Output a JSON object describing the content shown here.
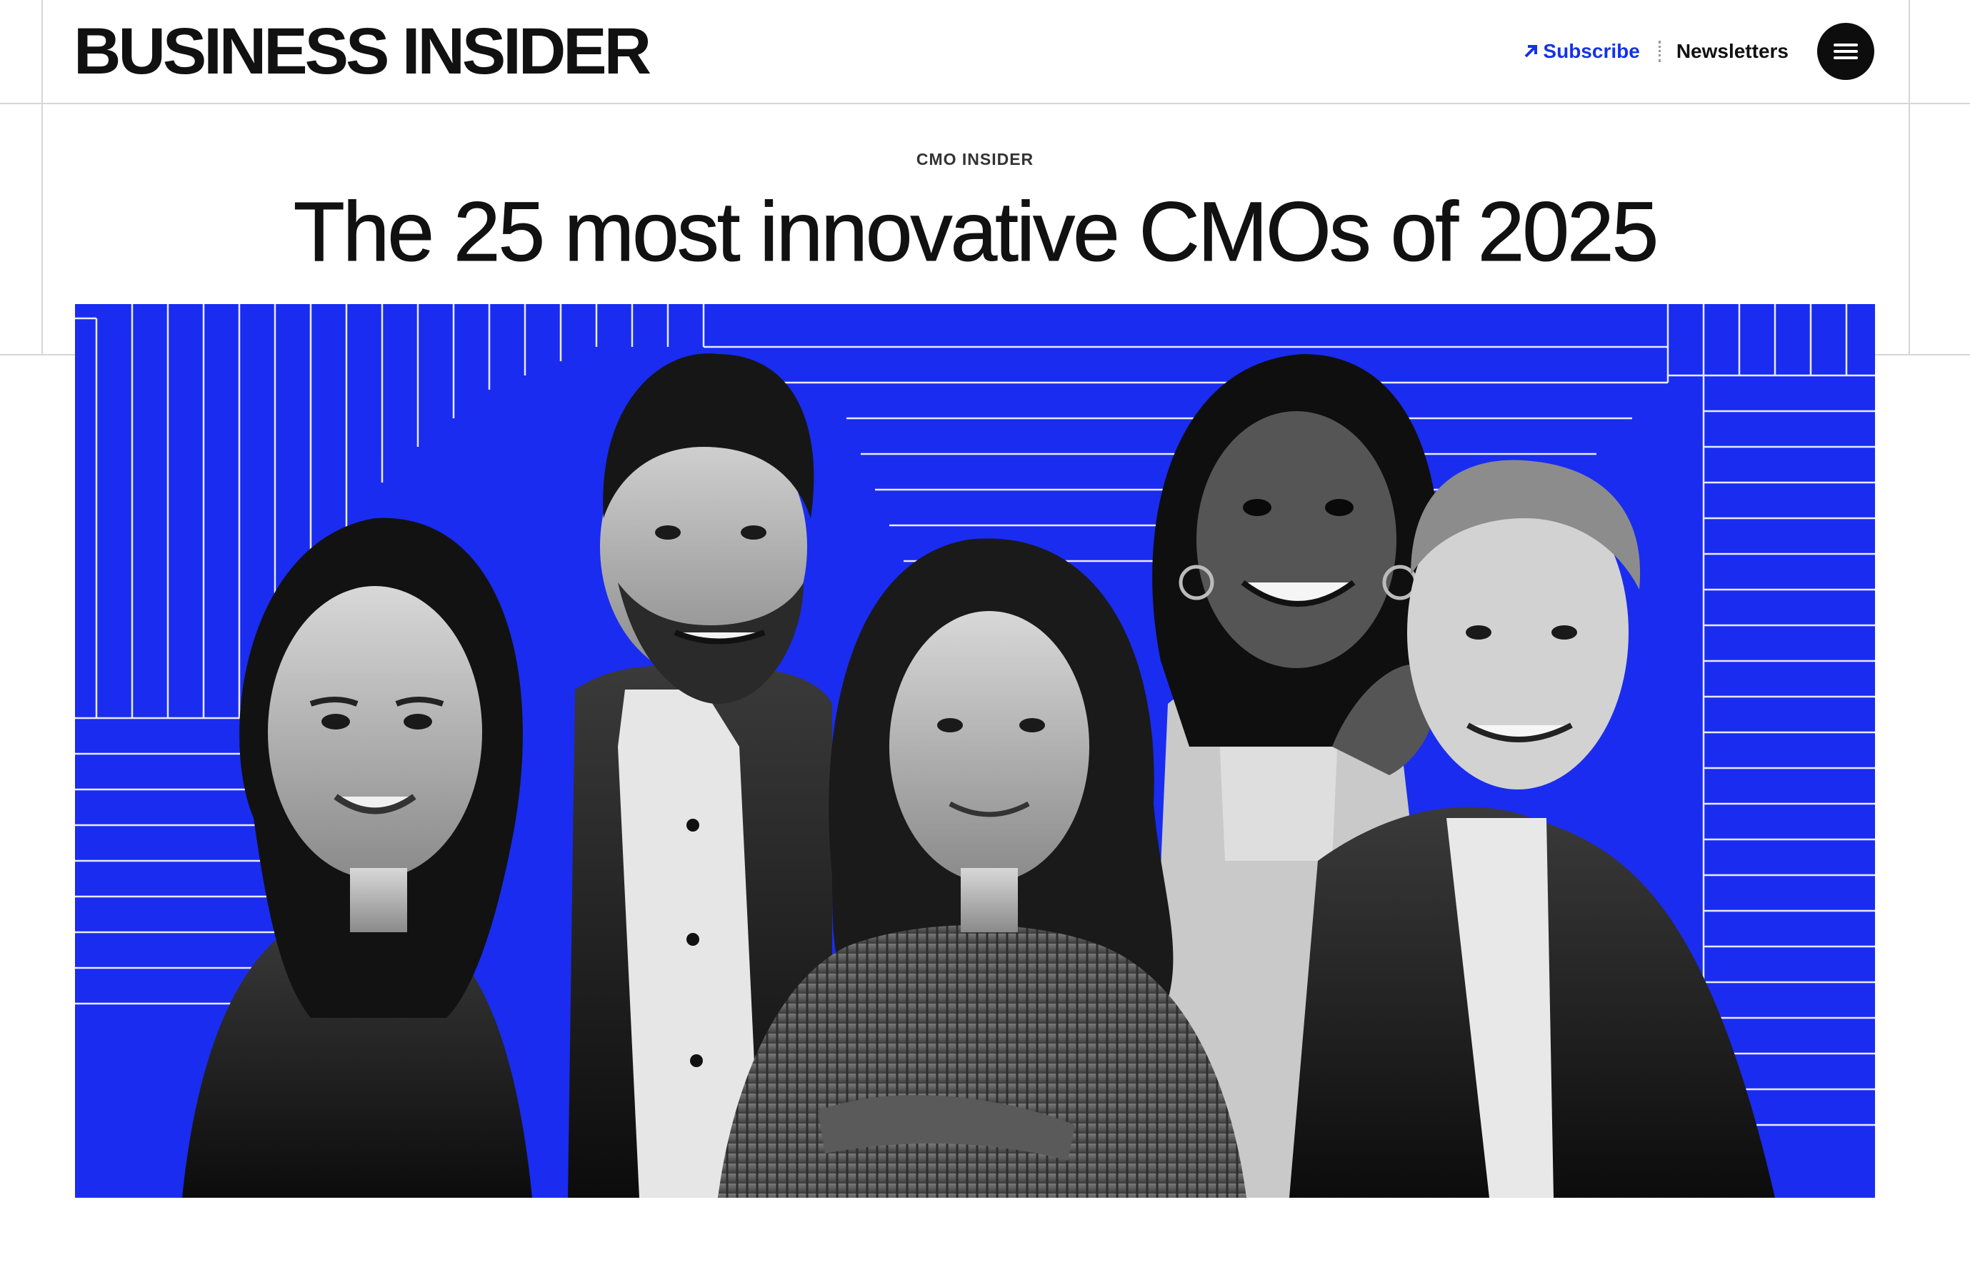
{
  "header": {
    "logo_text": "BUSINESS INSIDER",
    "subscribe_label": "Subscribe",
    "newsletters_label": "Newsletters",
    "menu_icon": "hamburger-menu-icon"
  },
  "article": {
    "kicker": "CMO INSIDER",
    "headline": "The 25 most innovative CMOs of 2025"
  },
  "hero": {
    "background_color": "#1a2cf0",
    "people": [
      "woman-dark-hair",
      "man-beard",
      "woman-curly-hair",
      "woman-smiling",
      "man-grey-hair"
    ]
  },
  "colors": {
    "accent": "#1433e6",
    "text": "#111111"
  }
}
